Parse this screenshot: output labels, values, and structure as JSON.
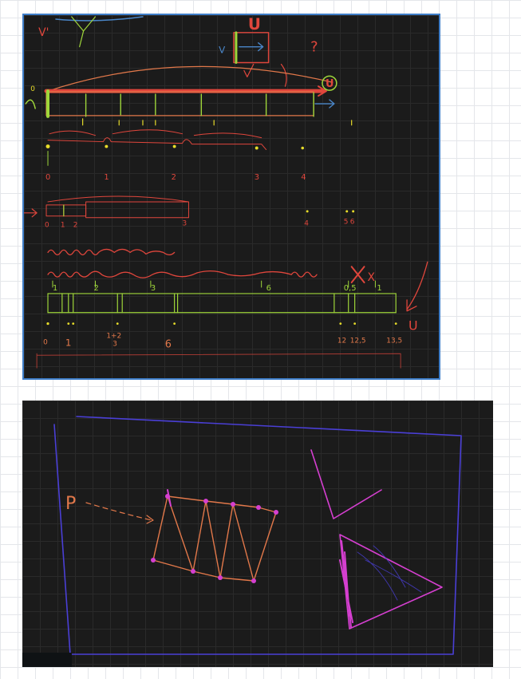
{
  "colors": {
    "green": "#9fd63a",
    "red": "#e0463c",
    "orange": "#e2784a",
    "yellow": "#e7dc2a",
    "purple": "#4a3fd6",
    "magenta": "#d53fd0",
    "blue": "#4a86c8"
  },
  "top_board": {
    "labels": {
      "u_top": "U",
      "v_top": "V",
      "question": "?",
      "u_circle": "U",
      "v_prime": "V'",
      "zero_small": "0",
      "x_mark": "X",
      "u_right": "U"
    },
    "row1_ticks": [
      "0",
      "1",
      "2",
      "3",
      "4"
    ],
    "row2_ticks": [
      "0",
      "1",
      "2",
      "3",
      "4",
      "5",
      "6"
    ],
    "segment_lengths": [
      "1",
      "2",
      "3",
      "6",
      "0,5",
      "1"
    ],
    "bottom_ticks": [
      "0",
      "1",
      "1+2",
      "3",
      "6",
      "12",
      "12,5",
      "13,5"
    ]
  },
  "bottom_board": {
    "labels": {
      "source": "P"
    }
  }
}
